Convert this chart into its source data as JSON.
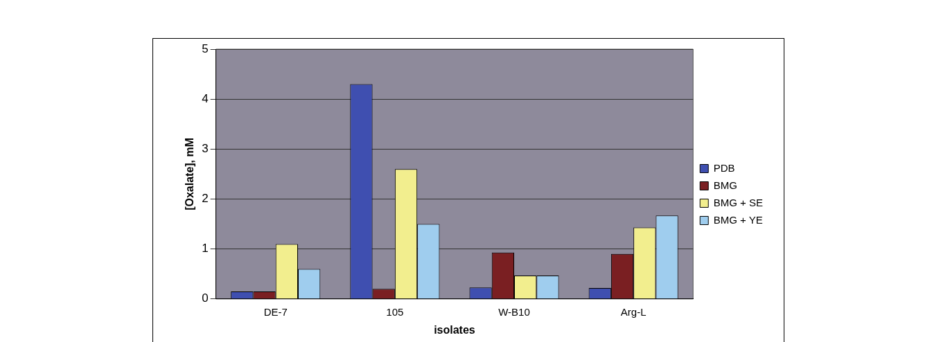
{
  "chart_data": {
    "type": "bar",
    "xlabel": "isolates",
    "ylabel": "[Oxalate], mM",
    "categories": [
      "DE-7",
      "105",
      "W-B10",
      "Arg-L"
    ],
    "series": [
      {
        "name": "PDB",
        "color": "#3f4fb0",
        "values": [
          0.15,
          4.3,
          0.23,
          0.22
        ]
      },
      {
        "name": "BMG",
        "color": "#7a1f22",
        "values": [
          0.15,
          0.2,
          0.93,
          0.9
        ]
      },
      {
        "name": "BMG + SE",
        "color": "#f2ee8e",
        "values": [
          1.1,
          2.6,
          0.47,
          1.43
        ]
      },
      {
        "name": "BMG + YE",
        "color": "#9fcdee",
        "values": [
          0.6,
          1.5,
          0.47,
          1.67
        ]
      }
    ],
    "ylim": [
      0,
      5
    ],
    "yticks": [
      0,
      1,
      2,
      3,
      4,
      5
    ],
    "grid": "y",
    "legend": "right"
  }
}
